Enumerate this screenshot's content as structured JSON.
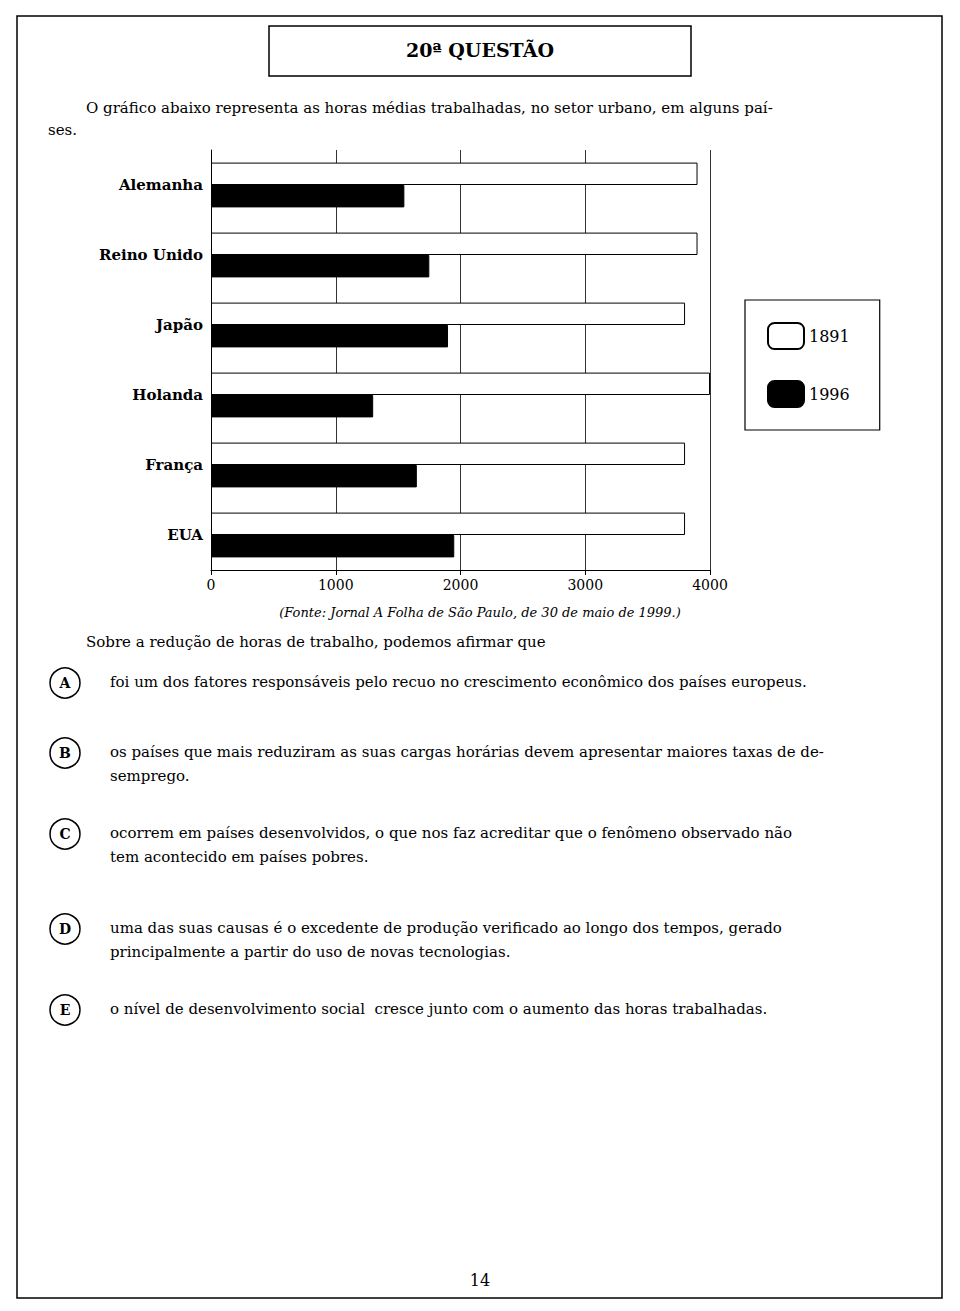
{
  "chart_data": {
    "type": "bar",
    "orientation": "horizontal",
    "title": "20ª QUESTÃO",
    "subtitle": [
      "O gráfico abaixo representa as horas médias trabalhadas, no setor urbano, em alguns paí-",
      "ses."
    ],
    "categories": [
      "EUA",
      "França",
      "Holanda",
      "Japão",
      "Reino Unido",
      "Alemanha"
    ],
    "series": [
      {
        "name": "1891",
        "color": "#ffffff",
        "values": [
          3800,
          3800,
          4000,
          3800,
          3900,
          3900
        ]
      },
      {
        "name": "1996",
        "color": "#000000",
        "values": [
          1950,
          1650,
          1300,
          1900,
          1750,
          1550
        ]
      }
    ],
    "xlim": [
      0,
      4000
    ],
    "xticks": [
      0,
      1000,
      2000,
      3000,
      4000
    ],
    "grid": true,
    "legend": "right",
    "annotations": [
      {
        "text": [
          "(Fonte: Jornal A Folha de São Paulo, de 30 de maio de 1999.)"
        ]
      },
      {
        "text": [
          "Sobre a redução de horas de trabalho, podemos afirmar que"
        ]
      },
      {
        "label": "A",
        "text": [
          "foi um dos fatores responsáveis pelo recuo no crescimento econômico dos países europeus."
        ]
      },
      {
        "label": "B",
        "text": [
          "os países que mais reduziram as suas cargas horárias devem apresentar maiores taxas de de-",
          "semprego."
        ]
      },
      {
        "label": "C",
        "text": [
          "ocorrem em países desenvolvidos, o que nos faz acreditar que o fenômeno observado não",
          "tem acontecido em países pobres."
        ]
      },
      {
        "label": "D",
        "text": [
          "uma das suas causas é o excedente de produção verificado ao longo dos tempos, gerado",
          "principalmente a partir do uso de novas tecnologias."
        ]
      },
      {
        "label": "E",
        "text": [
          "o nível de desenvolvimento social  cresce junto com o aumento das horas trabalhadas."
        ]
      },
      {
        "text": [
          "14"
        ]
      }
    ]
  }
}
